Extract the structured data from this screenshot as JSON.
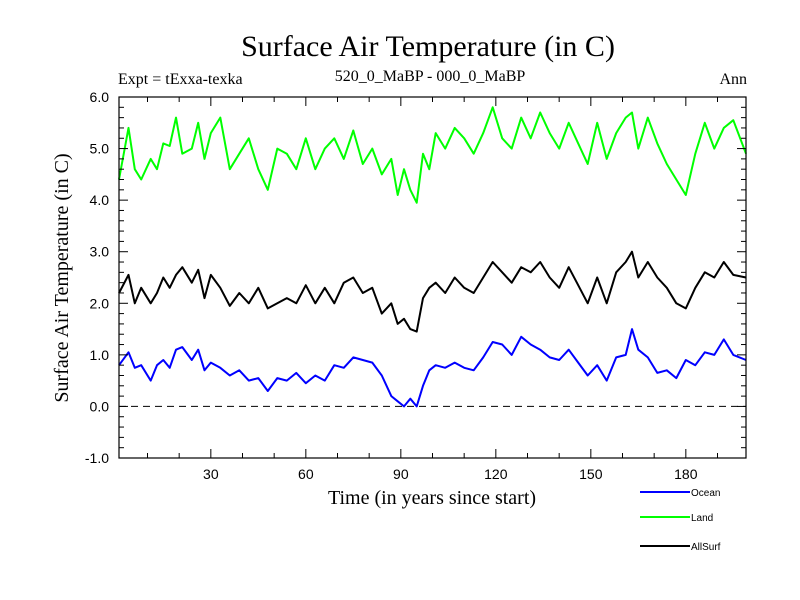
{
  "chart_data": {
    "type": "line",
    "title": "Surface Air Temperature (in C)",
    "subtitle_left": "Expt = tExxa-texka",
    "subtitle_center": "520_0_MaBP - 000_0_MaBP",
    "subtitle_right": "Ann",
    "xlabel": "Time (in years since start)",
    "ylabel": "Surface Air Temperature (in C)",
    "xlim": [
      1,
      199
    ],
    "ylim": [
      -1.0,
      6.0
    ],
    "xticks": [
      30,
      60,
      90,
      120,
      150,
      180
    ],
    "yticks": [
      -1.0,
      0.0,
      1.0,
      2.0,
      3.0,
      4.0,
      5.0,
      6.0
    ],
    "ytick_labels": [
      "-1.0",
      "0.0",
      "1.0",
      "2.0",
      "3.0",
      "4.0",
      "5.0",
      "6.0"
    ],
    "reference_line": {
      "y": 0.0,
      "style": "dashed"
    },
    "x": [
      1,
      4,
      6,
      8,
      11,
      13,
      15,
      17,
      19,
      21,
      24,
      26,
      28,
      30,
      33,
      36,
      39,
      42,
      45,
      48,
      51,
      54,
      57,
      60,
      63,
      66,
      69,
      72,
      75,
      78,
      81,
      84,
      87,
      89,
      91,
      93,
      95,
      97,
      99,
      101,
      104,
      107,
      110,
      113,
      116,
      119,
      122,
      125,
      128,
      131,
      134,
      137,
      140,
      143,
      146,
      149,
      152,
      155,
      158,
      161,
      163,
      165,
      168,
      171,
      174,
      177,
      180,
      183,
      186,
      189,
      192,
      195,
      199
    ],
    "series": [
      {
        "name": "Ocean",
        "color": "#0000ff",
        "values": [
          0.8,
          1.05,
          0.75,
          0.8,
          0.5,
          0.8,
          0.9,
          0.75,
          1.1,
          1.15,
          0.9,
          1.1,
          0.7,
          0.85,
          0.75,
          0.6,
          0.7,
          0.5,
          0.55,
          0.3,
          0.55,
          0.5,
          0.65,
          0.45,
          0.6,
          0.5,
          0.8,
          0.75,
          0.95,
          0.9,
          0.85,
          0.6,
          0.2,
          0.1,
          0.0,
          0.15,
          0.0,
          0.4,
          0.7,
          0.8,
          0.75,
          0.85,
          0.75,
          0.7,
          0.95,
          1.25,
          1.2,
          1.0,
          1.35,
          1.2,
          1.1,
          0.95,
          0.9,
          1.1,
          0.85,
          0.6,
          0.8,
          0.5,
          0.95,
          1.0,
          1.5,
          1.1,
          0.95,
          0.65,
          0.7,
          0.55,
          0.9,
          0.8,
          1.05,
          1.0,
          1.3,
          1.0,
          0.9
        ]
      },
      {
        "name": "Land",
        "color": "#00ff00",
        "values": [
          4.4,
          5.4,
          4.6,
          4.4,
          4.8,
          4.6,
          5.1,
          5.05,
          5.6,
          4.9,
          5.0,
          5.5,
          4.8,
          5.3,
          5.6,
          4.6,
          4.9,
          5.2,
          4.6,
          4.2,
          5.0,
          4.9,
          4.6,
          5.2,
          4.6,
          5.0,
          5.2,
          4.8,
          5.35,
          4.7,
          5.0,
          4.5,
          4.8,
          4.1,
          4.6,
          4.2,
          3.95,
          4.9,
          4.6,
          5.3,
          5.0,
          5.4,
          5.2,
          4.9,
          5.3,
          5.8,
          5.2,
          5.0,
          5.6,
          5.2,
          5.7,
          5.3,
          5.0,
          5.5,
          5.1,
          4.7,
          5.5,
          4.8,
          5.3,
          5.6,
          5.7,
          5.0,
          5.6,
          5.1,
          4.7,
          4.4,
          4.1,
          4.9,
          5.5,
          5.0,
          5.4,
          5.55,
          4.9
        ]
      },
      {
        "name": "AllSurf",
        "color": "#000000",
        "values": [
          2.2,
          2.55,
          2.0,
          2.3,
          2.0,
          2.2,
          2.5,
          2.3,
          2.55,
          2.7,
          2.4,
          2.65,
          2.1,
          2.55,
          2.3,
          1.95,
          2.2,
          2.0,
          2.3,
          1.9,
          2.0,
          2.1,
          2.0,
          2.35,
          2.0,
          2.3,
          2.0,
          2.4,
          2.5,
          2.2,
          2.3,
          1.8,
          2.0,
          1.6,
          1.7,
          1.5,
          1.45,
          2.1,
          2.3,
          2.4,
          2.2,
          2.5,
          2.3,
          2.2,
          2.5,
          2.8,
          2.6,
          2.4,
          2.7,
          2.6,
          2.8,
          2.5,
          2.3,
          2.7,
          2.35,
          2.0,
          2.5,
          2.0,
          2.6,
          2.8,
          3.0,
          2.5,
          2.8,
          2.5,
          2.3,
          2.0,
          1.9,
          2.3,
          2.6,
          2.5,
          2.8,
          2.55,
          2.5
        ]
      }
    ],
    "legend": [
      {
        "label": "Ocean",
        "color": "#0000ff"
      },
      {
        "label": "Land",
        "color": "#00ff00"
      },
      {
        "label": "AllSurf",
        "color": "#000000"
      }
    ]
  }
}
